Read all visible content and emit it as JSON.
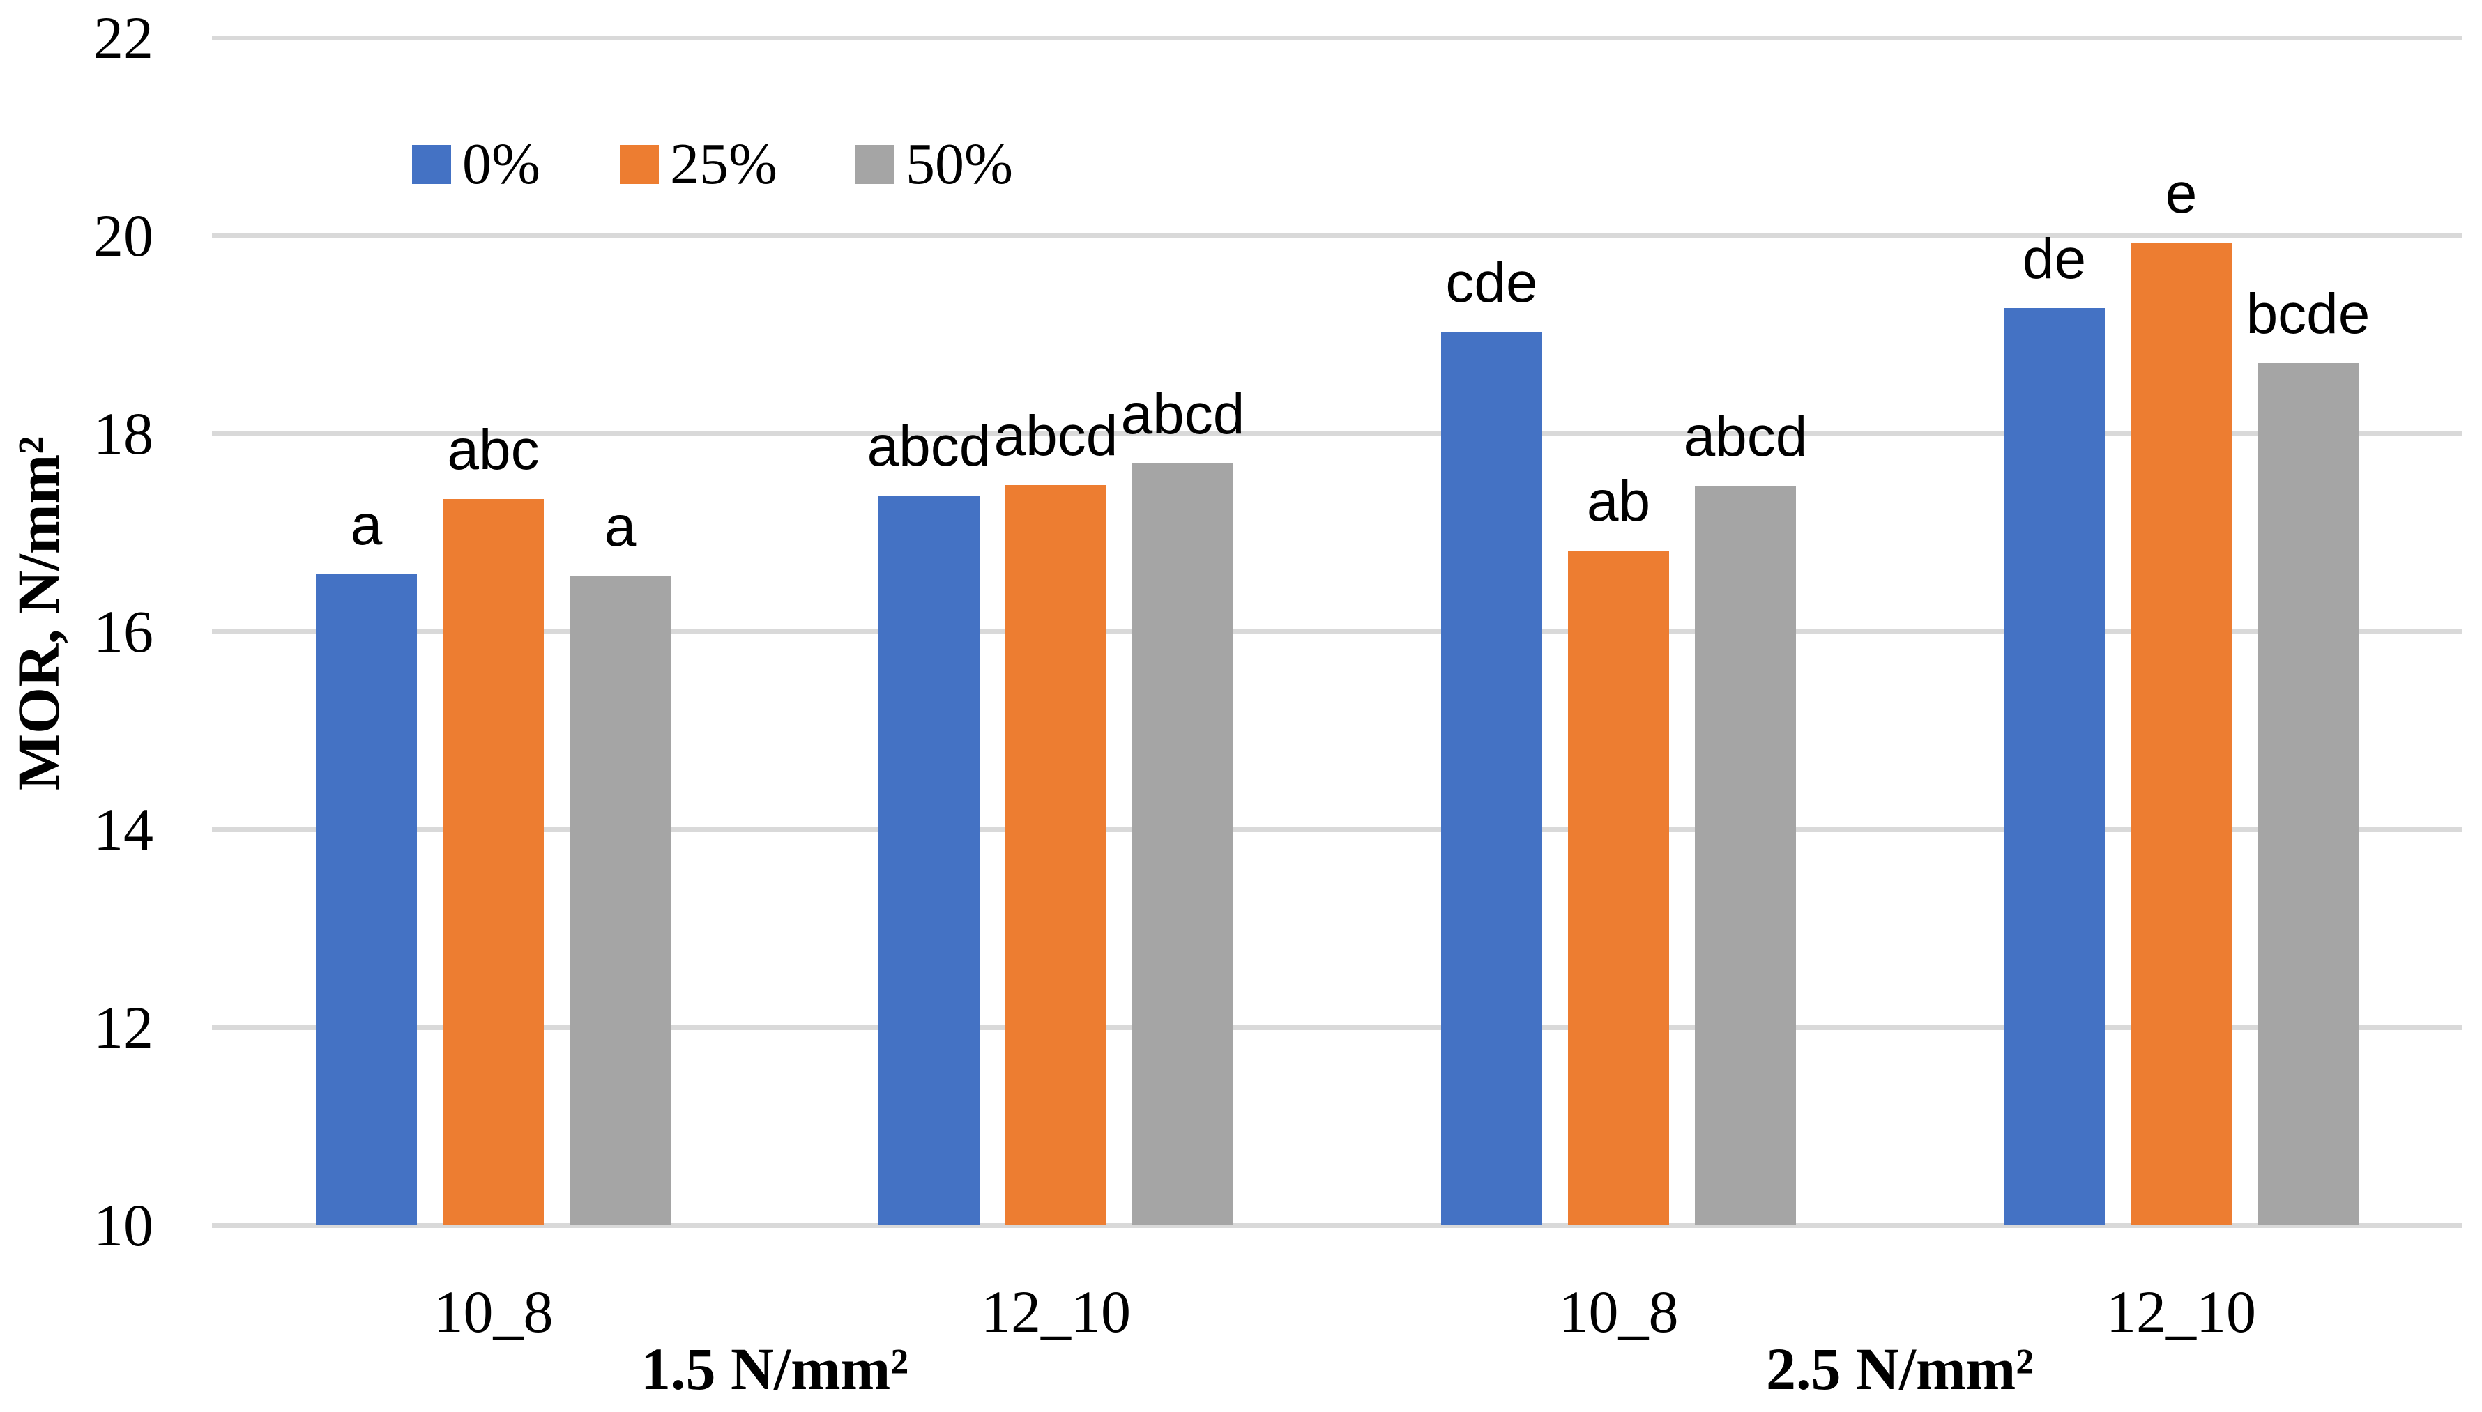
{
  "chart_data": {
    "type": "bar",
    "title": "",
    "ylabel": "MOR, N/mm²",
    "xlabel": "",
    "ylim": [
      10,
      22
    ],
    "yticks": [
      10,
      12,
      14,
      16,
      18,
      20,
      22
    ],
    "grid": true,
    "legend_position": "top-inside-left",
    "categories": [
      "10_8",
      "12_10",
      "10_8",
      "12_10"
    ],
    "category_groups": [
      {
        "label": "1.5 N/mm²",
        "category_indexes": [
          0,
          1
        ]
      },
      {
        "label": "2.5 N/mm²",
        "category_indexes": [
          2,
          3
        ]
      }
    ],
    "series": [
      {
        "name": "0%",
        "color": "#4472C4",
        "values": [
          16.58,
          17.37,
          19.03,
          19.27
        ],
        "sig_labels": [
          "a",
          "abcd",
          "cde",
          "de"
        ]
      },
      {
        "name": "25%",
        "color": "#ED7D31",
        "values": [
          17.34,
          17.48,
          16.82,
          19.93
        ],
        "sig_labels": [
          "abc",
          "abcd",
          "ab",
          "e"
        ]
      },
      {
        "name": "50%",
        "color": "#A5A5A5",
        "values": [
          16.56,
          17.7,
          17.47,
          18.71
        ],
        "sig_labels": [
          "a",
          "abcd",
          "abcd",
          "bcde"
        ]
      }
    ],
    "grid_color": "#D9D9D9",
    "text_color": "#000000",
    "background": "#FFFFFF"
  }
}
